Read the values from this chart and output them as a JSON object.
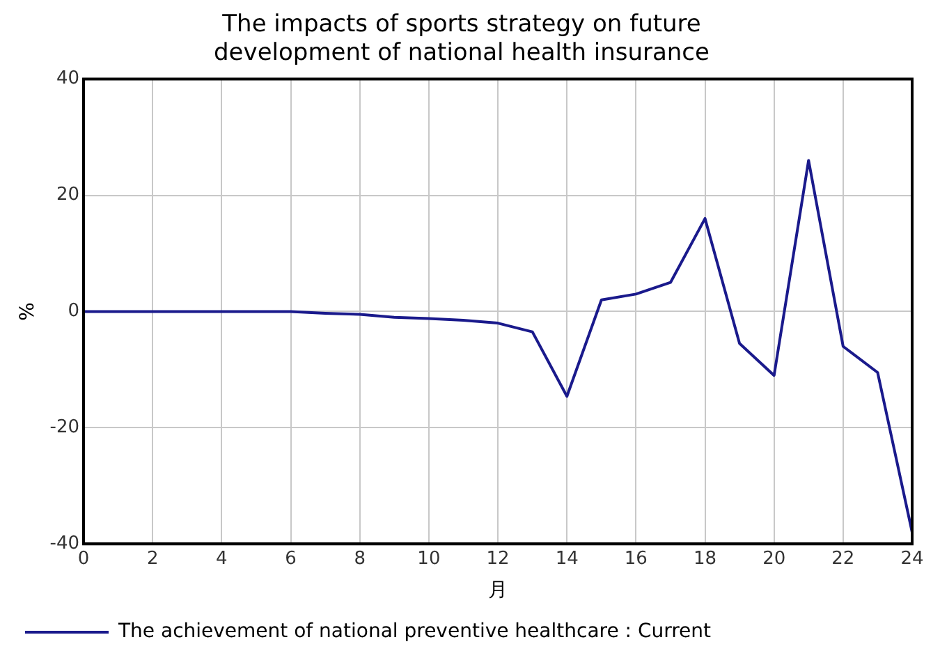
{
  "chart_data": {
    "type": "line",
    "title": "The impacts of sports strategy on future development of national health insurance",
    "xlabel": "月",
    "ylabel": "%",
    "x": [
      0,
      1,
      2,
      3,
      4,
      5,
      6,
      7,
      8,
      9,
      10,
      11,
      12,
      13,
      14,
      15,
      16,
      17,
      18,
      19,
      20,
      21,
      22,
      23,
      24
    ],
    "series": [
      {
        "name": "The achievement of national preventive healthcare : Current",
        "color": "#1a1a8c",
        "values": [
          0,
          0,
          0,
          0,
          0,
          0,
          0,
          -0.3,
          -0.5,
          -1,
          -1.2,
          -1.5,
          -2,
          -3.5,
          -14.6,
          2,
          3,
          5,
          16,
          -5.5,
          -11,
          26,
          -6,
          -10.5,
          -38
        ]
      }
    ],
    "xlim": [
      0,
      24
    ],
    "xticks": [
      0,
      2,
      4,
      6,
      8,
      10,
      12,
      14,
      16,
      18,
      20,
      22,
      24
    ],
    "ylim": [
      -40,
      40
    ],
    "yticks": [
      -40,
      -20,
      0,
      20,
      40
    ],
    "grid": true,
    "legend": "bottom",
    "marker": "none",
    "line_style": "solid"
  }
}
